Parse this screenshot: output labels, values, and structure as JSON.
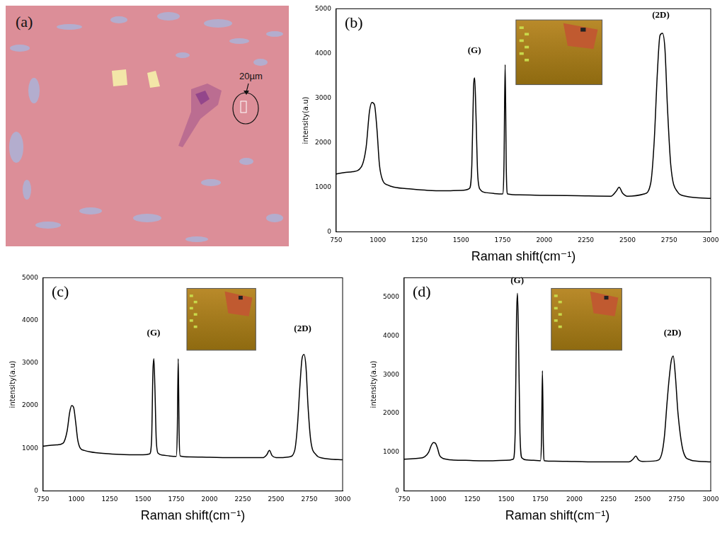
{
  "chart_data": [
    {
      "type": "image",
      "title": "(a)",
      "annotations": [
        {
          "text": "20µm"
        }
      ]
    },
    {
      "type": "line",
      "title": "(b)",
      "x_label": "Raman shift(cm⁻¹)",
      "y_label": "intensity(a.u)",
      "color": "#000000",
      "xlim": [
        750,
        3000
      ],
      "xticks": [
        750,
        1000,
        1250,
        1500,
        1750,
        2000,
        2250,
        2500,
        2750,
        3000
      ],
      "ylim": [
        0,
        5000
      ],
      "yticks": [
        0,
        1000,
        2000,
        3000,
        4000,
        5000
      ],
      "grid": false,
      "annotations": [
        {
          "text": "(G)",
          "x": 1580,
          "y": 3950
        },
        {
          "text": "(2D)",
          "x": 2700,
          "y": 4750
        }
      ],
      "x": [
        750,
        800,
        850,
        900,
        930,
        950,
        965,
        980,
        995,
        1010,
        1030,
        1060,
        1100,
        1200,
        1300,
        1400,
        1500,
        1550,
        1565,
        1575,
        1582,
        1590,
        1600,
        1615,
        1650,
        1700,
        1750,
        1758,
        1765,
        1772,
        1780,
        1850,
        2000,
        2200,
        2400,
        2430,
        2450,
        2470,
        2500,
        2600,
        2640,
        2660,
        2680,
        2695,
        2710,
        2725,
        2740,
        2760,
        2800,
        2850,
        2900,
        3000
      ],
      "values": [
        1300,
        1330,
        1350,
        1450,
        1900,
        2700,
        2900,
        2850,
        2300,
        1500,
        1150,
        1050,
        1000,
        960,
        930,
        920,
        930,
        970,
        1500,
        3200,
        3450,
        2600,
        1300,
        950,
        880,
        860,
        850,
        1500,
        3750,
        1400,
        850,
        830,
        820,
        810,
        800,
        900,
        1000,
        870,
        800,
        850,
        1100,
        2000,
        3600,
        4400,
        4450,
        4100,
        2800,
        1500,
        900,
        800,
        770,
        750
      ]
    },
    {
      "type": "line",
      "title": "(c)",
      "x_label": "Raman shift(cm⁻¹)",
      "y_label": "intensity(a.u)",
      "color": "#000000",
      "xlim": [
        750,
        3000
      ],
      "xticks": [
        750,
        1000,
        1250,
        1500,
        1750,
        2000,
        2250,
        2500,
        2750,
        3000
      ],
      "ylim": [
        0,
        5000
      ],
      "yticks": [
        0,
        1000,
        2000,
        3000,
        4000,
        5000
      ],
      "grid": false,
      "annotations": [
        {
          "text": "(G)",
          "x": 1580,
          "y": 3600
        },
        {
          "text": "(2D)",
          "x": 2700,
          "y": 3700
        }
      ],
      "x": [
        750,
        800,
        850,
        900,
        930,
        950,
        965,
        980,
        995,
        1010,
        1030,
        1060,
        1100,
        1200,
        1300,
        1400,
        1500,
        1550,
        1565,
        1575,
        1582,
        1590,
        1600,
        1615,
        1650,
        1700,
        1750,
        1758,
        1765,
        1772,
        1780,
        1850,
        2000,
        2200,
        2400,
        2430,
        2450,
        2470,
        2500,
        2600,
        2640,
        2660,
        2680,
        2695,
        2710,
        2725,
        2740,
        2760,
        2800,
        2850,
        2900,
        3000
      ],
      "values": [
        1050,
        1070,
        1080,
        1120,
        1400,
        1850,
        2000,
        1950,
        1600,
        1200,
        1000,
        950,
        920,
        880,
        860,
        850,
        850,
        870,
        1200,
        2800,
        3100,
        2400,
        1200,
        880,
        840,
        820,
        810,
        1400,
        3100,
        1300,
        820,
        800,
        790,
        780,
        780,
        850,
        950,
        830,
        780,
        800,
        950,
        1500,
        2500,
        3100,
        3200,
        2900,
        2000,
        1200,
        850,
        770,
        750,
        730
      ]
    },
    {
      "type": "line",
      "title": "(d)",
      "x_label": "Raman shift(cm⁻¹)",
      "y_label": "intensity(a.u)",
      "color": "#000000",
      "xlim": [
        750,
        3000
      ],
      "xticks": [
        750,
        1000,
        1250,
        1500,
        1750,
        2000,
        2250,
        2500,
        2750,
        3000
      ],
      "ylim": [
        0,
        5500
      ],
      "yticks": [
        0,
        1000,
        2000,
        3000,
        4000,
        5000
      ],
      "grid": false,
      "annotations": [
        {
          "text": "(G)",
          "x": 1580,
          "y": 5300
        },
        {
          "text": "(2D)",
          "x": 2720,
          "y": 3950
        }
      ],
      "x": [
        750,
        800,
        850,
        900,
        930,
        950,
        965,
        980,
        995,
        1010,
        1030,
        1060,
        1100,
        1200,
        1300,
        1400,
        1500,
        1550,
        1565,
        1575,
        1582,
        1590,
        1600,
        1615,
        1650,
        1700,
        1750,
        1758,
        1765,
        1772,
        1780,
        1850,
        2000,
        2200,
        2400,
        2430,
        2450,
        2470,
        2500,
        2600,
        2640,
        2660,
        2680,
        2695,
        2710,
        2725,
        2740,
        2760,
        2800,
        2850,
        2900,
        3000
      ],
      "values": [
        820,
        830,
        840,
        880,
        1000,
        1180,
        1250,
        1230,
        1100,
        920,
        850,
        820,
        800,
        790,
        780,
        780,
        790,
        820,
        1500,
        4500,
        5100,
        3800,
        1500,
        850,
        800,
        790,
        780,
        1300,
        3100,
        1200,
        780,
        770,
        760,
        750,
        750,
        820,
        900,
        800,
        760,
        780,
        950,
        1400,
        2300,
        2900,
        3350,
        3480,
        3000,
        2000,
        1000,
        800,
        770,
        750
      ]
    }
  ]
}
